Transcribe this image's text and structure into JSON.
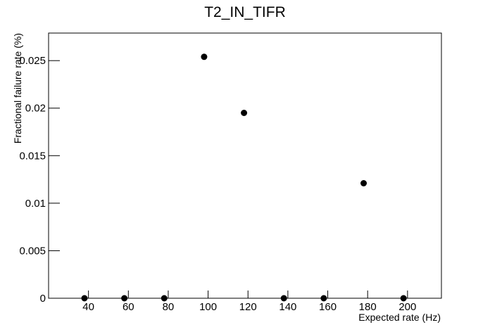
{
  "chart_data": {
    "type": "scatter",
    "title": "T2_IN_TIFR",
    "x_label": "Expected rate (Hz)",
    "y_label": "Fractional failure rate (%)",
    "x": [
      38,
      58,
      78,
      98,
      118,
      138,
      158,
      178,
      198
    ],
    "values": [
      0,
      0,
      0,
      0.0254,
      0.0195,
      0,
      0,
      0.0121,
      0
    ],
    "color": "#000000",
    "xlim": [
      20,
      217
    ],
    "xticks": [
      40,
      60,
      80,
      100,
      120,
      140,
      160,
      180,
      200
    ],
    "ylim": [
      0,
      0.0279
    ],
    "yticks": [
      0,
      0.005,
      0.01,
      0.015,
      0.02,
      0.025
    ]
  }
}
